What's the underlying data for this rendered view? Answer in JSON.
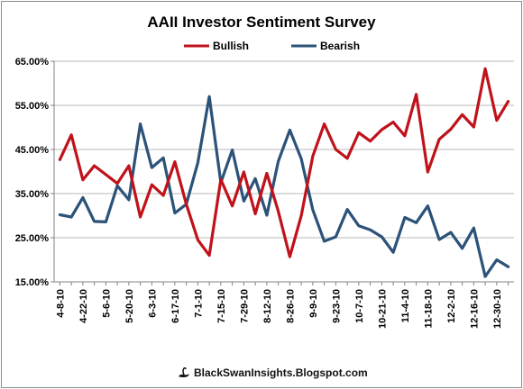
{
  "watermark": "BlackSwanInsights.Blogspot.com",
  "chart_data": {
    "type": "line",
    "title": "AAII Investor Sentiment Survey",
    "xlabel": "",
    "ylabel": "",
    "ylim": [
      15,
      65
    ],
    "yticks": [
      "15.00%",
      "25.00%",
      "35.00%",
      "45.00%",
      "55.00%",
      "65.00%"
    ],
    "grid": true,
    "legend_position": "top-center",
    "categories": [
      "4-8-10",
      "4-15-10",
      "4-22-10",
      "4-29-10",
      "5-6-10",
      "5-13-10",
      "5-20-10",
      "5-27-10",
      "6-3-10",
      "6-10-10",
      "6-17-10",
      "6-24-10",
      "7-1-10",
      "7-8-10",
      "7-15-10",
      "7-22-10",
      "7-29-10",
      "8-5-10",
      "8-12-10",
      "8-19-10",
      "8-26-10",
      "9-2-10",
      "9-9-10",
      "9-16-10",
      "9-23-10",
      "9-30-10",
      "10-7-10",
      "10-14-10",
      "10-21-10",
      "10-28-10",
      "11-4-10",
      "11-11-10",
      "11-18-10",
      "11-25-10",
      "12-2-10",
      "12-9-10",
      "12-16-10",
      "12-23-10",
      "12-30-10",
      "1-6-11"
    ],
    "xticks": [
      "4-8-10",
      "4-22-10",
      "5-6-10",
      "5-20-10",
      "6-3-10",
      "6-17-10",
      "7-1-10",
      "7-15-10",
      "7-29-10",
      "8-12-10",
      "8-26-10",
      "9-9-10",
      "9-23-10",
      "10-7-10",
      "10-21-10",
      "11-4-10",
      "11-18-10",
      "12-2-10",
      "12-16-10",
      "12-30-10"
    ],
    "series": [
      {
        "name": "Bullish",
        "color": "#c0121a",
        "values": [
          42.7,
          48.3,
          38.1,
          41.3,
          39.3,
          37.3,
          41.3,
          29.7,
          37.0,
          34.6,
          42.2,
          32.6,
          24.5,
          21.0,
          38.2,
          32.2,
          39.9,
          30.4,
          39.6,
          31.0,
          20.7,
          30.0,
          43.5,
          50.8,
          45.0,
          43.0,
          48.8,
          46.9,
          49.5,
          51.2,
          48.1,
          57.5,
          39.9,
          47.3,
          49.6,
          52.9,
          50.1,
          63.3,
          51.6,
          55.9
        ]
      },
      {
        "name": "Bearish",
        "color": "#2b5279",
        "values": [
          30.2,
          29.7,
          34.1,
          28.7,
          28.6,
          36.8,
          33.6,
          50.8,
          40.9,
          43.1,
          30.6,
          32.6,
          42.0,
          57.0,
          37.5,
          44.9,
          33.3,
          38.4,
          30.1,
          42.3,
          49.4,
          42.9,
          31.3,
          24.2,
          25.2,
          31.4,
          27.7,
          26.8,
          25.2,
          21.7,
          29.6,
          28.4,
          32.2,
          24.6,
          26.2,
          22.6,
          27.2,
          16.2,
          20.0,
          18.4
        ]
      }
    ]
  }
}
